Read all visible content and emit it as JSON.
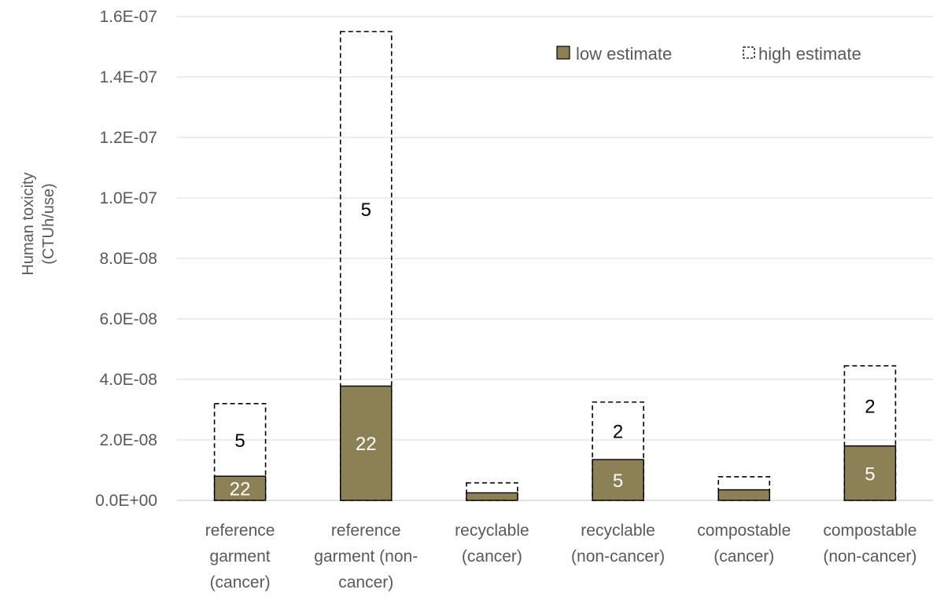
{
  "chart_data": {
    "type": "bar",
    "title": "",
    "ylabel_lines": [
      "Human toxicity",
      "(CTUh/use)"
    ],
    "xlabel": "",
    "ylim": [
      0,
      1.6e-07
    ],
    "yticks": [
      0,
      2e-08,
      4e-08,
      6e-08,
      8e-08,
      1e-07,
      1.2e-07,
      1.4e-07,
      1.6e-07
    ],
    "ytick_labels": [
      "0.0E+00",
      "2.0E-08",
      "4.0E-08",
      "6.0E-08",
      "8.0E-08",
      "1.0E-07",
      "1.2E-07",
      "1.4E-07",
      "1.6E-07"
    ],
    "grid": true,
    "legend_position": "top-right",
    "categories": [
      {
        "lines": [
          "reference",
          "garment",
          "(cancer)"
        ]
      },
      {
        "lines": [
          "reference",
          "garment (non-",
          "cancer)"
        ]
      },
      {
        "lines": [
          "recyclable",
          "(cancer)"
        ]
      },
      {
        "lines": [
          "recyclable",
          "(non-cancer)"
        ]
      },
      {
        "lines": [
          "compostable",
          "(cancer)"
        ]
      },
      {
        "lines": [
          "compostable",
          "(non-cancer)"
        ]
      }
    ],
    "series": [
      {
        "name": "low estimate",
        "color": "#8c8155",
        "values": [
          8e-09,
          3.78e-08,
          2.5e-09,
          1.35e-08,
          3.5e-09,
          1.8e-08
        ],
        "labels": [
          "22",
          "22",
          "",
          "5",
          "",
          "5"
        ]
      },
      {
        "name": "high estimate",
        "color": "#000000",
        "values": [
          3.2e-08,
          1.55e-07,
          5.8e-09,
          3.25e-08,
          7.8e-09,
          4.45e-08
        ],
        "labels": [
          "5",
          "5",
          "",
          "2",
          "",
          "2"
        ]
      }
    ]
  }
}
